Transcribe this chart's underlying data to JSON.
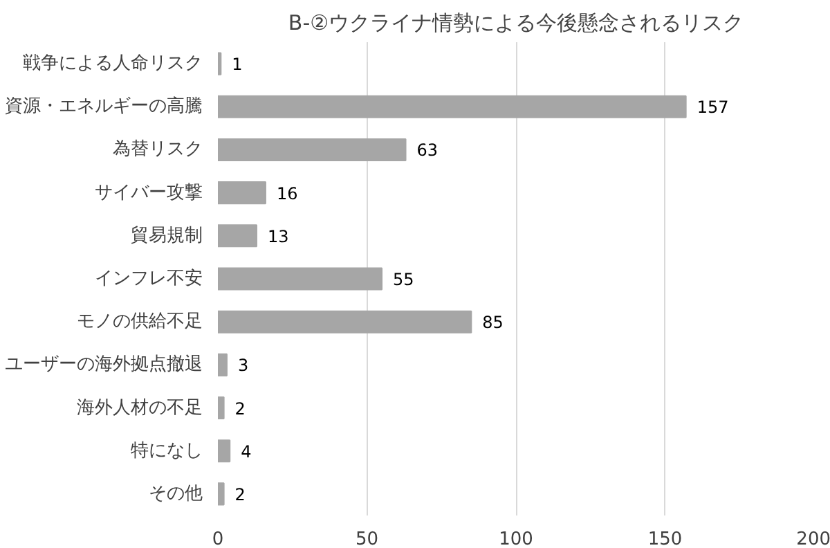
{
  "chart_data": {
    "type": "bar",
    "orientation": "horizontal",
    "title": "B-②ウクライナ情勢による今後懸念されるリスク",
    "categories": [
      "戦争による人命リスク",
      "資源・エネルギーの高騰",
      "為替リスク",
      "サイバー攻撃",
      "貿易規制",
      "インフレ不安",
      "モノの供給不足",
      "ユーザーの海外拠点撤退",
      "海外人材の不足",
      "特になし",
      "その他"
    ],
    "values": [
      1,
      157,
      63,
      16,
      13,
      55,
      85,
      3,
      2,
      4,
      2
    ],
    "color": "#a6a6a6",
    "xlim": [
      0,
      200
    ],
    "xticks": [
      0,
      50,
      100,
      150,
      200
    ],
    "grid": "x",
    "data_labels": true
  }
}
